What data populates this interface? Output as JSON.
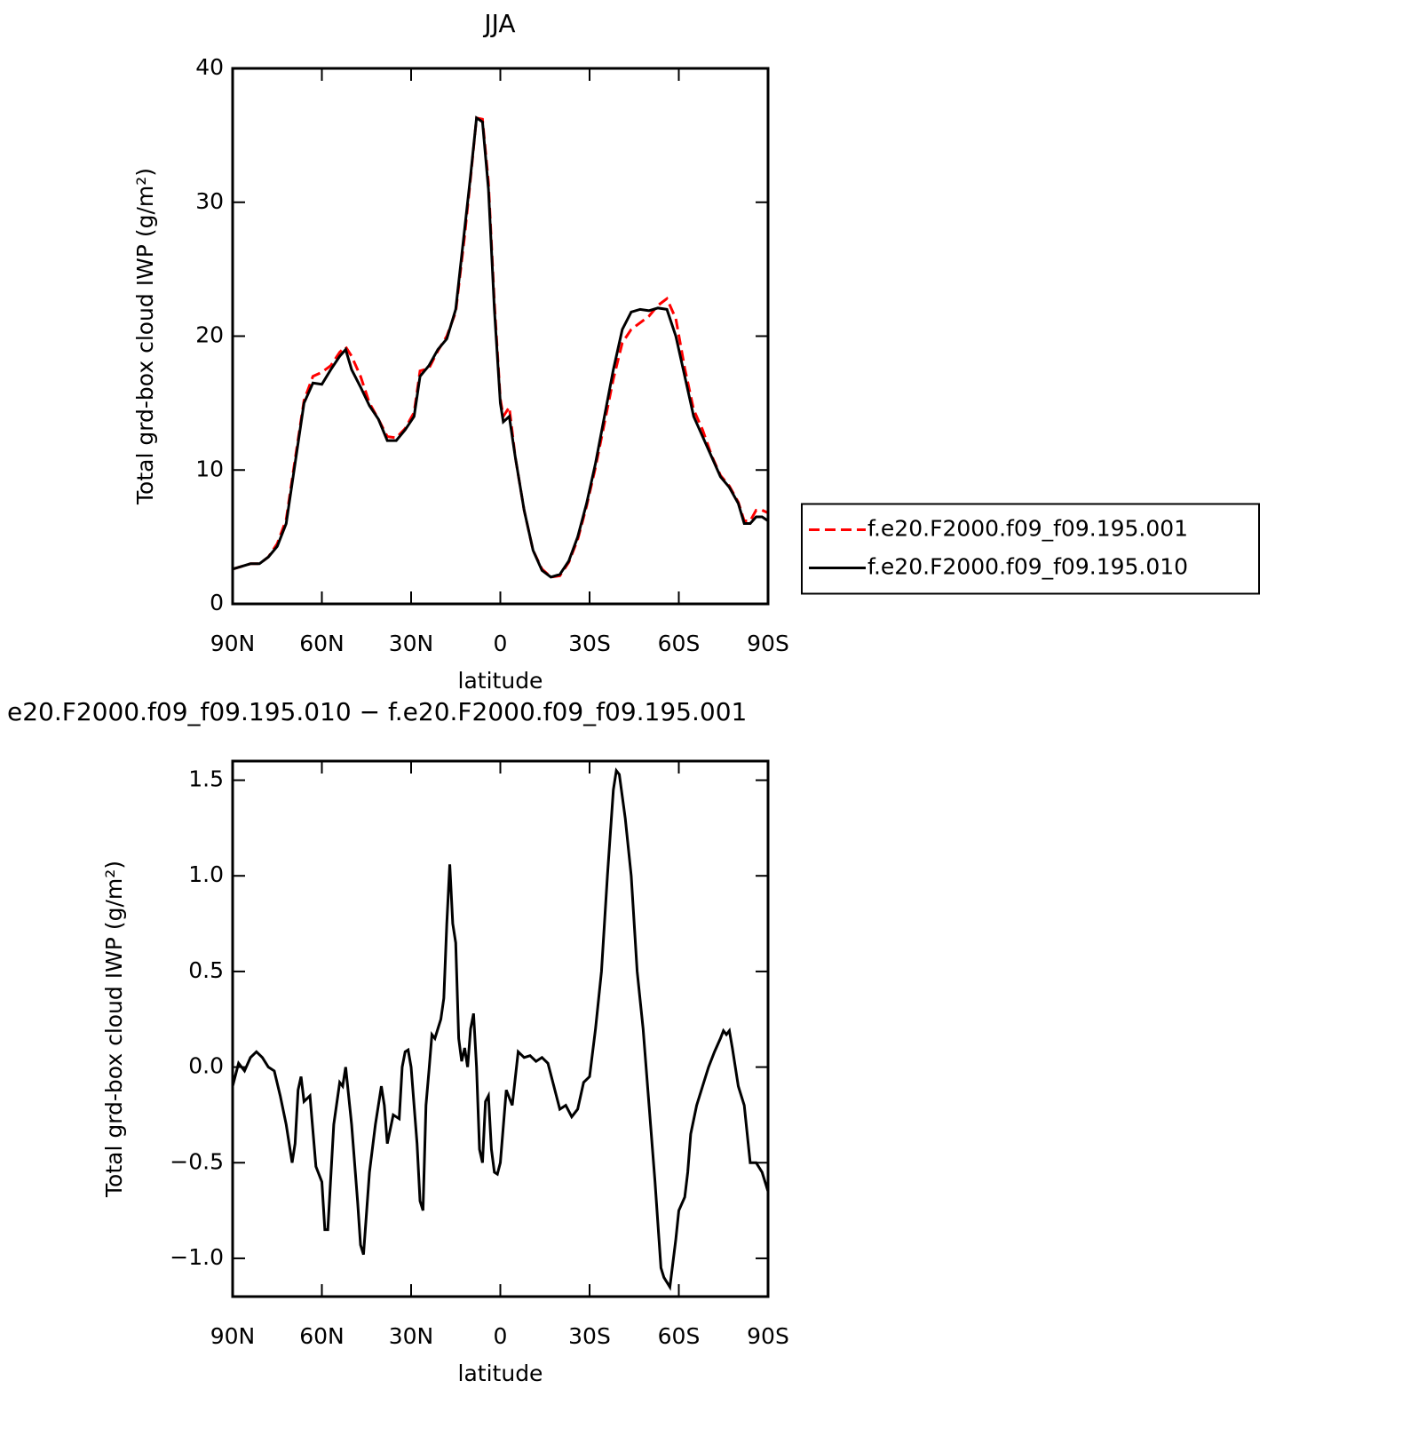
{
  "chart_data": [
    {
      "type": "line",
      "title": "JJA",
      "xlabel": "latitude",
      "ylabel": "Total grd-box cloud IWP (g/m²)",
      "x": [
        90,
        87,
        84,
        81,
        78,
        75,
        72,
        69,
        66,
        63,
        60,
        57,
        54,
        52,
        50,
        47,
        44,
        41,
        38,
        35,
        32,
        29,
        27,
        24,
        21,
        18,
        15,
        12,
        10,
        8,
        6,
        4,
        2,
        0,
        -1,
        -3,
        -5,
        -8,
        -11,
        -14,
        -17,
        -20,
        -23,
        -26,
        -29,
        -32,
        -35,
        -38,
        -41,
        -44,
        -47,
        -50,
        -53,
        -56,
        -59,
        -62,
        -65,
        -68,
        -71,
        -74,
        -77,
        -80,
        -82,
        -84,
        -86,
        -88,
        -90
      ],
      "series": [
        {
          "name": "f.e20.F2000.f09_f09.195.001",
          "color": "#ff0000",
          "line_style": "dashed",
          "values": [
            2.6,
            2.8,
            3.0,
            3.0,
            3.5,
            4.5,
            6.3,
            10.8,
            15.2,
            17,
            17.3,
            17.8,
            18.8,
            19.2,
            18.5,
            17,
            15,
            13.8,
            12.5,
            12.4,
            13.1,
            14.3,
            17.4,
            17.6,
            18.9,
            20,
            21.8,
            27.5,
            31.8,
            36.3,
            36.2,
            31.5,
            22.5,
            15.3,
            14,
            14.7,
            11,
            7,
            4,
            2.6,
            2.0,
            2.1,
            3.1,
            4.8,
            7.3,
            10.2,
            13.5,
            16.8,
            19.5,
            20.5,
            21,
            21.5,
            22.3,
            22.8,
            21.3,
            17.6,
            14.5,
            13,
            11.1,
            9.6,
            8.8,
            7.6,
            6.2,
            6.2,
            7,
            7,
            6.8
          ]
        },
        {
          "name": "f.e20.F2000.f09_f09.195.010",
          "color": "#000000",
          "line_style": "solid",
          "values": [
            2.6,
            2.8,
            3.0,
            3.0,
            3.5,
            4.3,
            6,
            10.5,
            15,
            16.5,
            16.4,
            17.5,
            18.5,
            19.0,
            17.5,
            16.2,
            14.8,
            13.8,
            12.2,
            12.2,
            13.0,
            14,
            17,
            17.8,
            19,
            19.8,
            22,
            28,
            32,
            36.3,
            36,
            31,
            22,
            15,
            13.6,
            14,
            11,
            7,
            4,
            2.5,
            2.0,
            2.2,
            3.2,
            5,
            7.5,
            10.5,
            14,
            17.5,
            20.5,
            21.8,
            22,
            21.9,
            22.1,
            22,
            20,
            17,
            14,
            12.5,
            11,
            9.5,
            8.7,
            7.5,
            6,
            6,
            6.5,
            6.5,
            6.2
          ]
        }
      ],
      "xlim": [
        90,
        -90
      ],
      "xticks": [
        {
          "value": 90,
          "label": "90N"
        },
        {
          "value": 60,
          "label": "60N"
        },
        {
          "value": 30,
          "label": "30N"
        },
        0,
        {
          "value": -30,
          "label": "30S"
        },
        {
          "value": -60,
          "label": "60S"
        },
        {
          "value": -90,
          "label": "90S"
        }
      ],
      "ylim": [
        0,
        40
      ],
      "yticks": [
        0,
        10,
        20,
        30,
        40
      ],
      "legend": "right"
    },
    {
      "type": "line",
      "title": "e20.F2000.f09_f09.195.010 − f.e20.F2000.f09_f09.195.001",
      "xlabel": "latitude",
      "ylabel": "Total grd-box cloud IWP (g/m²)",
      "x": [
        90,
        88,
        86,
        84,
        82,
        80,
        78,
        76,
        74,
        72,
        70,
        69,
        68,
        67,
        66,
        64,
        62,
        60,
        59,
        58,
        56,
        54,
        53,
        52,
        50,
        48,
        47,
        46,
        44,
        42,
        40,
        39,
        38,
        36,
        34,
        33,
        32,
        31,
        30,
        28,
        27,
        26,
        25,
        24,
        23,
        22,
        21,
        20,
        19,
        18,
        17,
        16,
        15,
        14,
        13,
        12,
        11,
        10,
        9,
        8,
        7,
        6,
        5,
        4,
        3,
        2,
        1,
        0,
        -2,
        -4,
        -6,
        -8,
        -10,
        -12,
        -14,
        -16,
        -18,
        -20,
        -22,
        -24,
        -26,
        -28,
        -30,
        -32,
        -34,
        -36,
        -38,
        -39,
        -40,
        -42,
        -44,
        -46,
        -48,
        -50,
        -52,
        -54,
        -55,
        -57,
        -59,
        -60,
        -62,
        -63,
        -64,
        -66,
        -68,
        -70,
        -72,
        -74,
        -75,
        -76,
        -77,
        -78,
        -80,
        -82,
        -84,
        -86,
        -88,
        -90
      ],
      "series": [
        {
          "color": "#000000",
          "line_style": "solid",
          "values": [
            -0.1,
            0.02,
            -0.02,
            0.05,
            0.08,
            0.05,
            0.0,
            -0.02,
            -0.15,
            -0.3,
            -0.5,
            -0.4,
            -0.12,
            -0.05,
            -0.18,
            -0.15,
            -0.52,
            -0.6,
            -0.85,
            -0.85,
            -0.3,
            -0.08,
            -0.1,
            0.0,
            -0.3,
            -0.7,
            -0.93,
            -0.98,
            -0.55,
            -0.3,
            -0.1,
            -0.2,
            -0.4,
            -0.25,
            -0.27,
            0.0,
            0.08,
            0.09,
            0.0,
            -0.4,
            -0.7,
            -0.75,
            -0.2,
            -0.02,
            0.17,
            0.15,
            0.2,
            0.25,
            0.36,
            0.75,
            1.06,
            0.75,
            0.65,
            0.15,
            0.03,
            0.1,
            0.0,
            0.2,
            0.28,
            0.0,
            -0.43,
            -0.5,
            -0.18,
            -0.15,
            -0.43,
            -0.55,
            -0.56,
            -0.5,
            -0.12,
            -0.2,
            0.08,
            0.05,
            0.06,
            0.03,
            0.05,
            0.02,
            -0.1,
            -0.22,
            -0.2,
            -0.26,
            -0.22,
            -0.08,
            -0.05,
            0.2,
            0.5,
            1.0,
            1.45,
            1.55,
            1.53,
            1.3,
            1.0,
            0.5,
            0.2,
            -0.2,
            -0.6,
            -1.05,
            -1.1,
            -1.15,
            -0.9,
            -0.75,
            -0.68,
            -0.55,
            -0.35,
            -0.2,
            -0.1,
            0.0,
            0.08,
            0.15,
            0.19,
            0.17,
            0.19,
            0.1,
            -0.1,
            -0.2,
            -0.5,
            -0.5,
            -0.55,
            -0.65
          ]
        }
      ],
      "xlim": [
        90,
        -90
      ],
      "xticks": [
        {
          "value": 90,
          "label": "90N"
        },
        {
          "value": 60,
          "label": "60N"
        },
        {
          "value": 30,
          "label": "30N"
        },
        0,
        {
          "value": -30,
          "label": "30S"
        },
        {
          "value": -60,
          "label": "60S"
        },
        {
          "value": -90,
          "label": "90S"
        }
      ],
      "ylim": [
        -1.2,
        1.6
      ],
      "yticks": [
        {
          "value": -1,
          "label": "−1.0"
        },
        {
          "value": -0.5,
          "label": "−0.5"
        },
        {
          "value": 0,
          "label": "0.0"
        },
        0.5,
        {
          "value": 1,
          "label": "1.0"
        },
        1.5
      ]
    }
  ]
}
